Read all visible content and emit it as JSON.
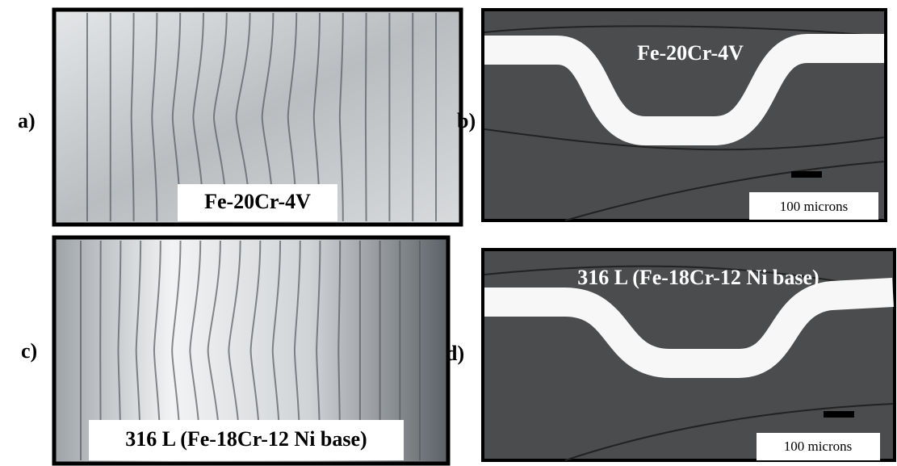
{
  "panels": [
    {
      "label": "a)",
      "caption": "Fe-20Cr-4V"
    },
    {
      "label": "b)",
      "caption": "Fe-20Cr-4V",
      "scale_label": "100 microns"
    },
    {
      "label": "c)",
      "caption": "316 L (Fe-18Cr-12 Ni base)"
    },
    {
      "label": "d)",
      "caption": "316 L (Fe-18Cr-12 Ni base)",
      "scale_label": "100 microns"
    }
  ]
}
